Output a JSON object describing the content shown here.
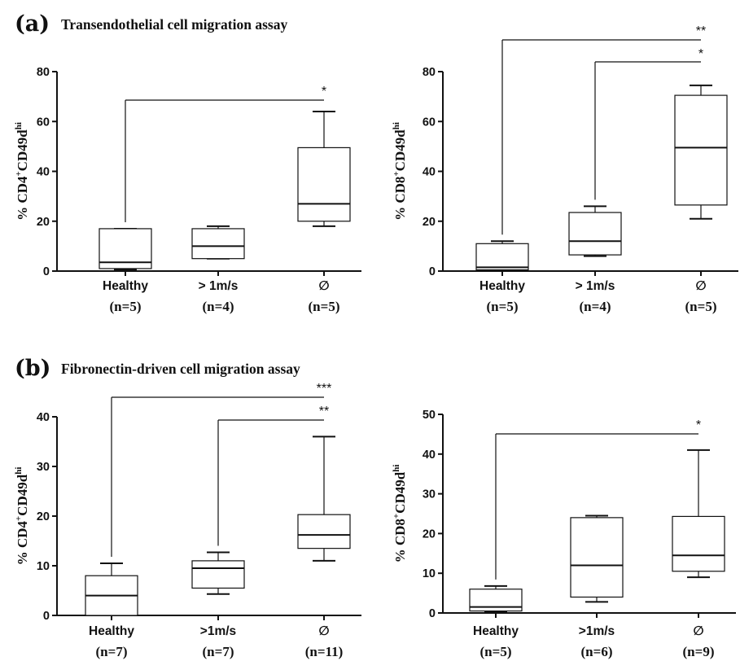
{
  "sections": [
    {
      "letter": "(a)",
      "title": "Transendothelial cell migration assay"
    },
    {
      "letter": "(b)",
      "title": "Fibronectin-driven cell migration assay"
    }
  ],
  "chart_data": [
    {
      "type": "box",
      "ylabel_main": "% CD4",
      "ylabel_sup1": "+",
      "ylabel_mid": "CD49d",
      "ylabel_sup2": "hi",
      "ylim": [
        0,
        80
      ],
      "yticks": [
        0,
        20,
        40,
        60,
        80
      ],
      "categories": [
        "Healthy",
        "> 1m/s",
        "∅"
      ],
      "n_labels": [
        "(n=5)",
        "(n=4)",
        "(n=5)"
      ],
      "boxes": [
        {
          "min": 0.5,
          "q1": 1,
          "median": 3.5,
          "q3": 17,
          "max": 17
        },
        {
          "min": 5,
          "q1": 5,
          "median": 10,
          "q3": 17,
          "max": 18
        },
        {
          "min": 18,
          "q1": 20,
          "median": 27,
          "q3": 49.5,
          "max": 64
        }
      ],
      "significance": [
        {
          "from": 0,
          "to": 2,
          "label": "*"
        }
      ]
    },
    {
      "type": "box",
      "ylabel_main": "% CD8",
      "ylabel_sup1": "+",
      "ylabel_mid": "CD49d",
      "ylabel_sup2": "hi",
      "ylim": [
        0,
        80
      ],
      "yticks": [
        0,
        20,
        40,
        60,
        80
      ],
      "categories": [
        "Healthy",
        "> 1m/s",
        "∅"
      ],
      "n_labels": [
        "(n=5)",
        "(n=4)",
        "(n=5)"
      ],
      "boxes": [
        {
          "min": 0,
          "q1": 0.5,
          "median": 1.5,
          "q3": 11,
          "max": 12
        },
        {
          "min": 6,
          "q1": 6.5,
          "median": 12,
          "q3": 23.5,
          "max": 26
        },
        {
          "min": 21,
          "q1": 26.5,
          "median": 49.5,
          "q3": 70.5,
          "max": 74.5
        }
      ],
      "significance": [
        {
          "from": 0,
          "to": 2,
          "label": "**"
        },
        {
          "from": 1,
          "to": 2,
          "label": "*"
        }
      ]
    },
    {
      "type": "box",
      "ylabel_main": "% CD4",
      "ylabel_sup1": "+",
      "ylabel_mid": "CD49d",
      "ylabel_sup2": "hi",
      "ylim": [
        0,
        40
      ],
      "yticks": [
        0,
        10,
        20,
        30,
        40
      ],
      "categories": [
        "Healthy",
        ">1m/s",
        "∅"
      ],
      "n_labels": [
        "(n=7)",
        "(n=7)",
        "(n=11)"
      ],
      "boxes": [
        {
          "min": 0,
          "q1": 0,
          "median": 4,
          "q3": 8,
          "max": 10.5
        },
        {
          "min": 4.3,
          "q1": 5.5,
          "median": 9.5,
          "q3": 11,
          "max": 12.7
        },
        {
          "min": 11,
          "q1": 13.5,
          "median": 16.2,
          "q3": 20.3,
          "max": 36
        }
      ],
      "significance": [
        {
          "from": 0,
          "to": 2,
          "label": "***"
        },
        {
          "from": 1,
          "to": 2,
          "label": "**"
        }
      ]
    },
    {
      "type": "box",
      "ylabel_main": "% CD8",
      "ylabel_sup1": "+",
      "ylabel_mid": "CD49d",
      "ylabel_sup2": "hi",
      "ylim": [
        0,
        50
      ],
      "yticks": [
        0,
        10,
        20,
        30,
        40,
        50
      ],
      "categories": [
        "Healthy",
        ">1m/s",
        "∅"
      ],
      "n_labels": [
        "(n=5)",
        "(n=6)",
        "(n=9)"
      ],
      "boxes": [
        {
          "min": 0.3,
          "q1": 0.5,
          "median": 1.5,
          "q3": 6,
          "max": 6.8
        },
        {
          "min": 2.8,
          "q1": 4,
          "median": 12,
          "q3": 24,
          "max": 24.5
        },
        {
          "min": 9,
          "q1": 10.5,
          "median": 14.5,
          "q3": 24.3,
          "max": 41
        }
      ],
      "significance": [
        {
          "from": 0,
          "to": 2,
          "label": "*"
        }
      ]
    }
  ]
}
